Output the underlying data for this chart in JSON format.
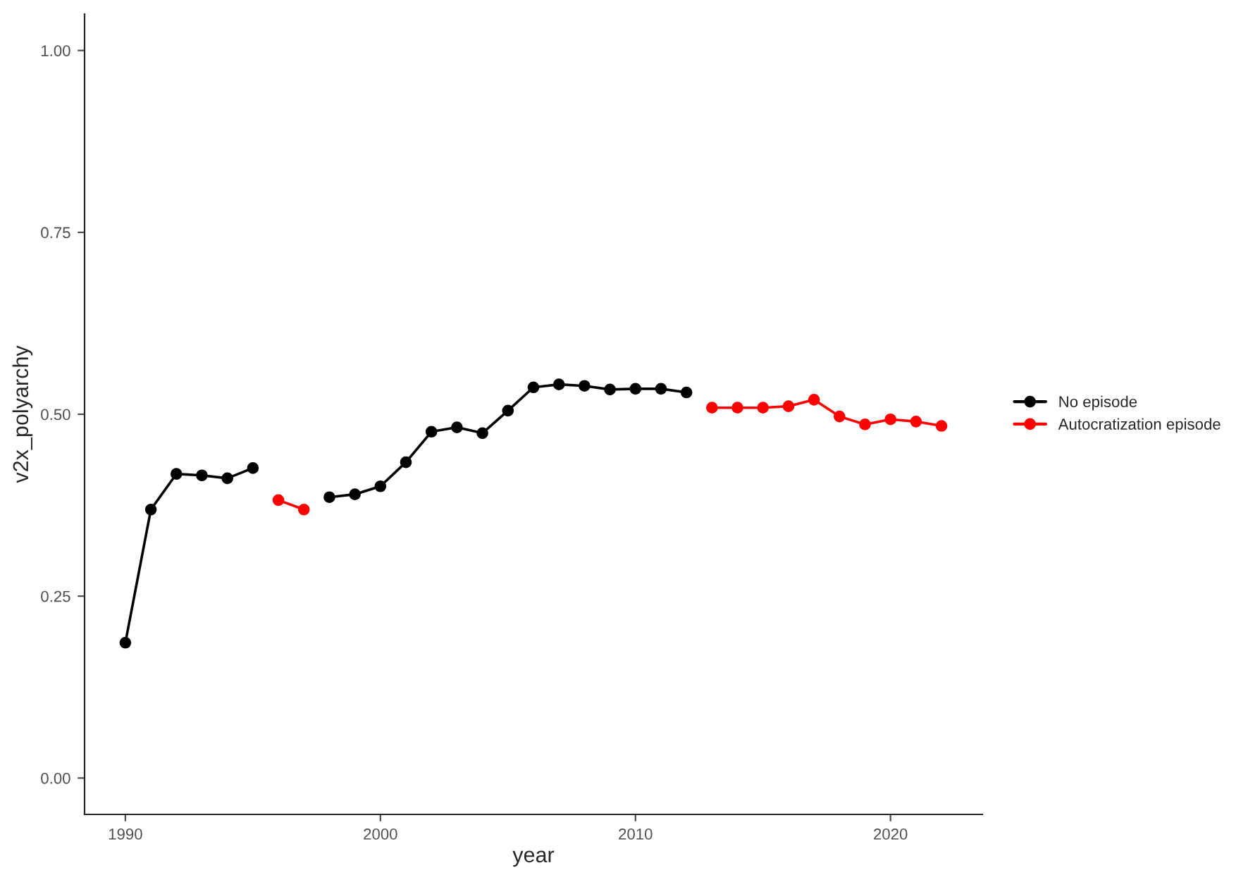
{
  "chart_data": {
    "type": "line",
    "xlabel": "year",
    "ylabel": "v2x_polyarchy",
    "x": [
      1990,
      1991,
      1992,
      1993,
      1994,
      1995,
      1996,
      1997,
      1998,
      1999,
      2000,
      2001,
      2002,
      2003,
      2004,
      2005,
      2006,
      2007,
      2008,
      2009,
      2010,
      2011,
      2012,
      2013,
      2014,
      2015,
      2016,
      2017,
      2018,
      2019,
      2020,
      2021,
      2022
    ],
    "series": [
      {
        "name": "No episode",
        "color": "#000000",
        "values": [
          0.186,
          0.369,
          0.418,
          0.416,
          0.412,
          0.426,
          null,
          null,
          0.386,
          0.39,
          0.401,
          0.434,
          0.476,
          0.482,
          0.474,
          0.505,
          0.537,
          0.541,
          0.539,
          0.534,
          0.535,
          0.535,
          0.53,
          null,
          null,
          null,
          null,
          null,
          null,
          null,
          null,
          null,
          null
        ]
      },
      {
        "name": "Autocratization episode",
        "color": "#ff0000",
        "values": [
          null,
          null,
          null,
          null,
          null,
          null,
          0.382,
          0.369,
          null,
          null,
          null,
          null,
          null,
          null,
          null,
          null,
          null,
          null,
          null,
          null,
          null,
          null,
          null,
          0.509,
          0.509,
          0.509,
          0.511,
          0.52,
          0.497,
          0.486,
          0.493,
          0.49,
          0.484
        ]
      }
    ],
    "xlim": [
      1988.4,
      2023.6
    ],
    "xticks": [
      1990,
      2000,
      2010,
      2020
    ],
    "ylim": [
      -0.05,
      1.05
    ],
    "yticks": [
      {
        "value": 0,
        "label": "0.00"
      },
      {
        "value": 0.25,
        "label": "0.25"
      },
      {
        "value": 0.5,
        "label": "0.50"
      },
      {
        "value": 0.75,
        "label": "0.75"
      },
      {
        "value": 1,
        "label": "1.00"
      }
    ],
    "grid": false,
    "legend": "right",
    "marker": "circle",
    "line_style": "solid"
  }
}
